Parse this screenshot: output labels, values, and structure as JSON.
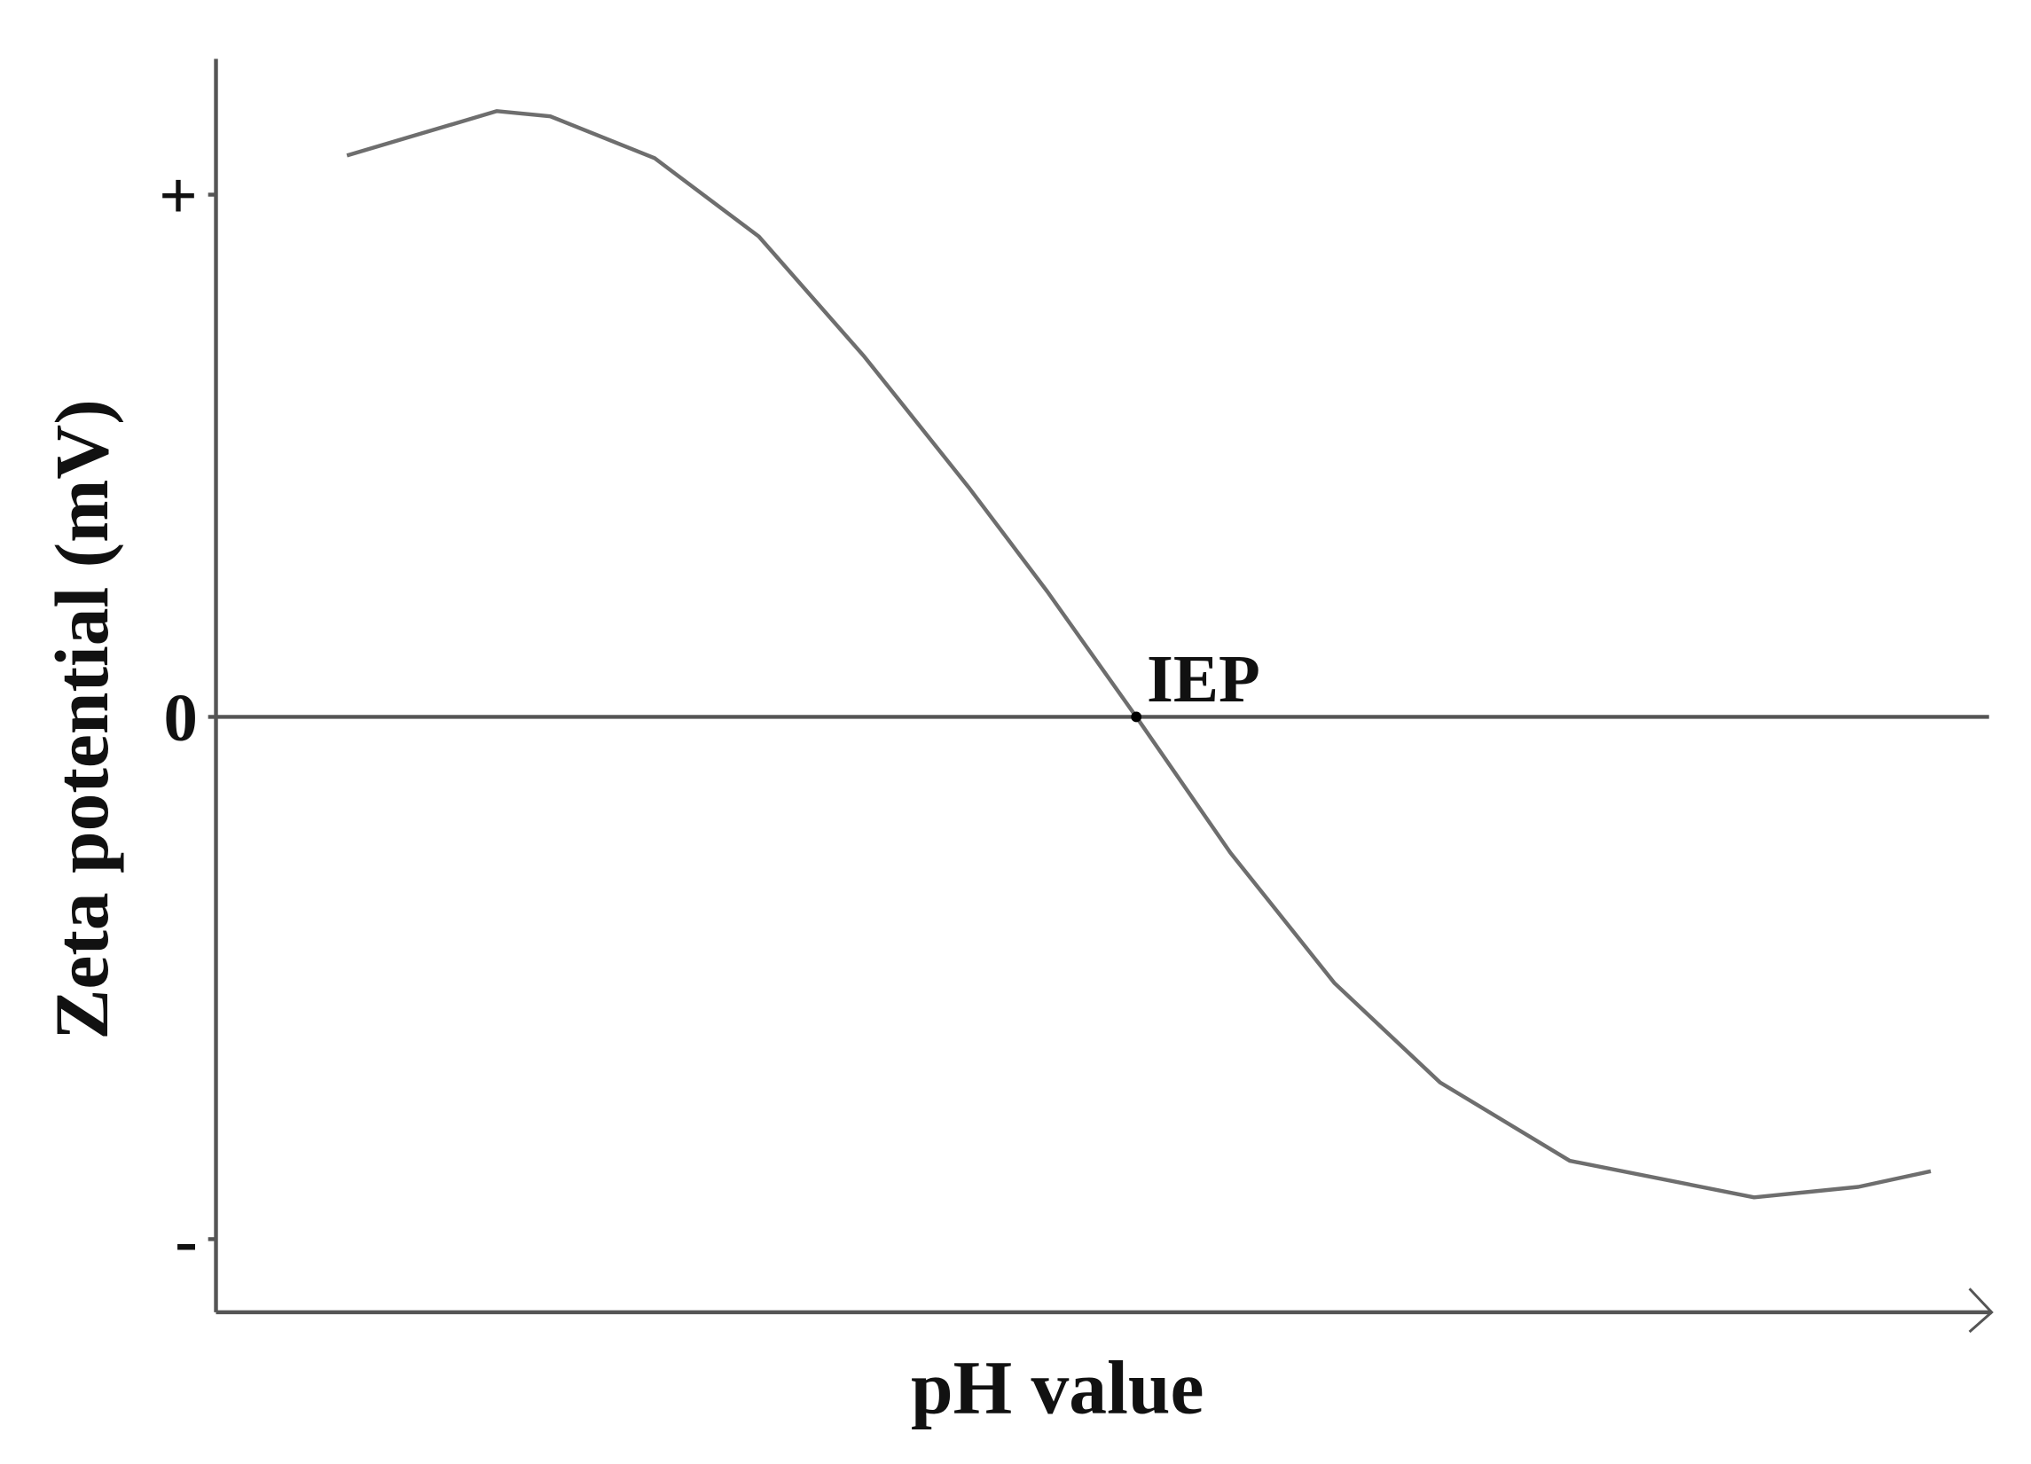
{
  "chart_data": {
    "type": "line",
    "x_label": "pH value",
    "y_label": "Zeta potential (mV)",
    "xlim": [
      0,
      14
    ],
    "ylim": [
      -1.14,
      1.26
    ],
    "yticks": [
      {
        "value": 1,
        "label": "+"
      },
      {
        "value": 0,
        "label": "0"
      },
      {
        "value": -1,
        "label": "-"
      }
    ],
    "zero_line": true,
    "series": [
      {
        "color": "#6e6e6e",
        "x": [
          1.03,
          2.21,
          2.63,
          3.45,
          4.27,
          5.1,
          5.92,
          6.54,
          7.24,
          7.98,
          8.8,
          9.63,
          10.65,
          12.1,
          12.92,
          13.49
        ],
        "values": [
          1.075,
          1.16,
          1.15,
          1.07,
          0.92,
          0.69,
          0.44,
          0.24,
          0,
          -0.26,
          -0.51,
          -0.7,
          -0.85,
          -0.92,
          -0.9,
          -0.87
        ]
      }
    ],
    "annotations": [
      {
        "text": "IEP",
        "x": 7.24,
        "y": 0
      }
    ]
  }
}
